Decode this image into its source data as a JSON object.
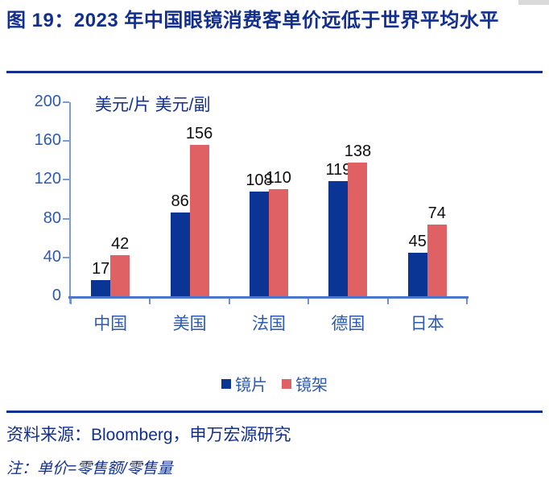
{
  "header": {
    "title": "图 19：2023 年中国眼镜消费客单价远低于世界平均水平"
  },
  "chart_data": {
    "type": "bar",
    "title": "图 19：2023 年中国眼镜消费客单价远低于世界平均水平",
    "unit_label": "美元/片 美元/副",
    "categories": [
      "中国",
      "美国",
      "法国",
      "德国",
      "日本"
    ],
    "category_keys": [
      "china",
      "usa",
      "france",
      "germany",
      "japan"
    ],
    "series": [
      {
        "key": "lens",
        "name": "镜片",
        "color": "#0B3594",
        "values": [
          17,
          86,
          108,
          119,
          45
        ]
      },
      {
        "key": "frame",
        "name": "镜架",
        "color": "#E06164",
        "values": [
          42,
          156,
          110,
          138,
          74
        ]
      }
    ],
    "ylim": [
      0,
      200
    ],
    "yticks": [
      0,
      40,
      80,
      120,
      160,
      200
    ],
    "grid": false,
    "legend_position": "bottom",
    "value_labels": true
  },
  "footer": {
    "source": "资料来源：Bloomberg，申万宏源研究",
    "note": "注：单价=零售额/零售量"
  },
  "colors": {
    "title_navy": "#122F90",
    "axis_label_blue": "#2D5AB0",
    "x_axis_line": "#4B76CE",
    "y_axis_line": "#7C9BD9",
    "lens_bar": "#0B3594",
    "frame_bar": "#E06164",
    "value_label": "#0d0d0d"
  }
}
